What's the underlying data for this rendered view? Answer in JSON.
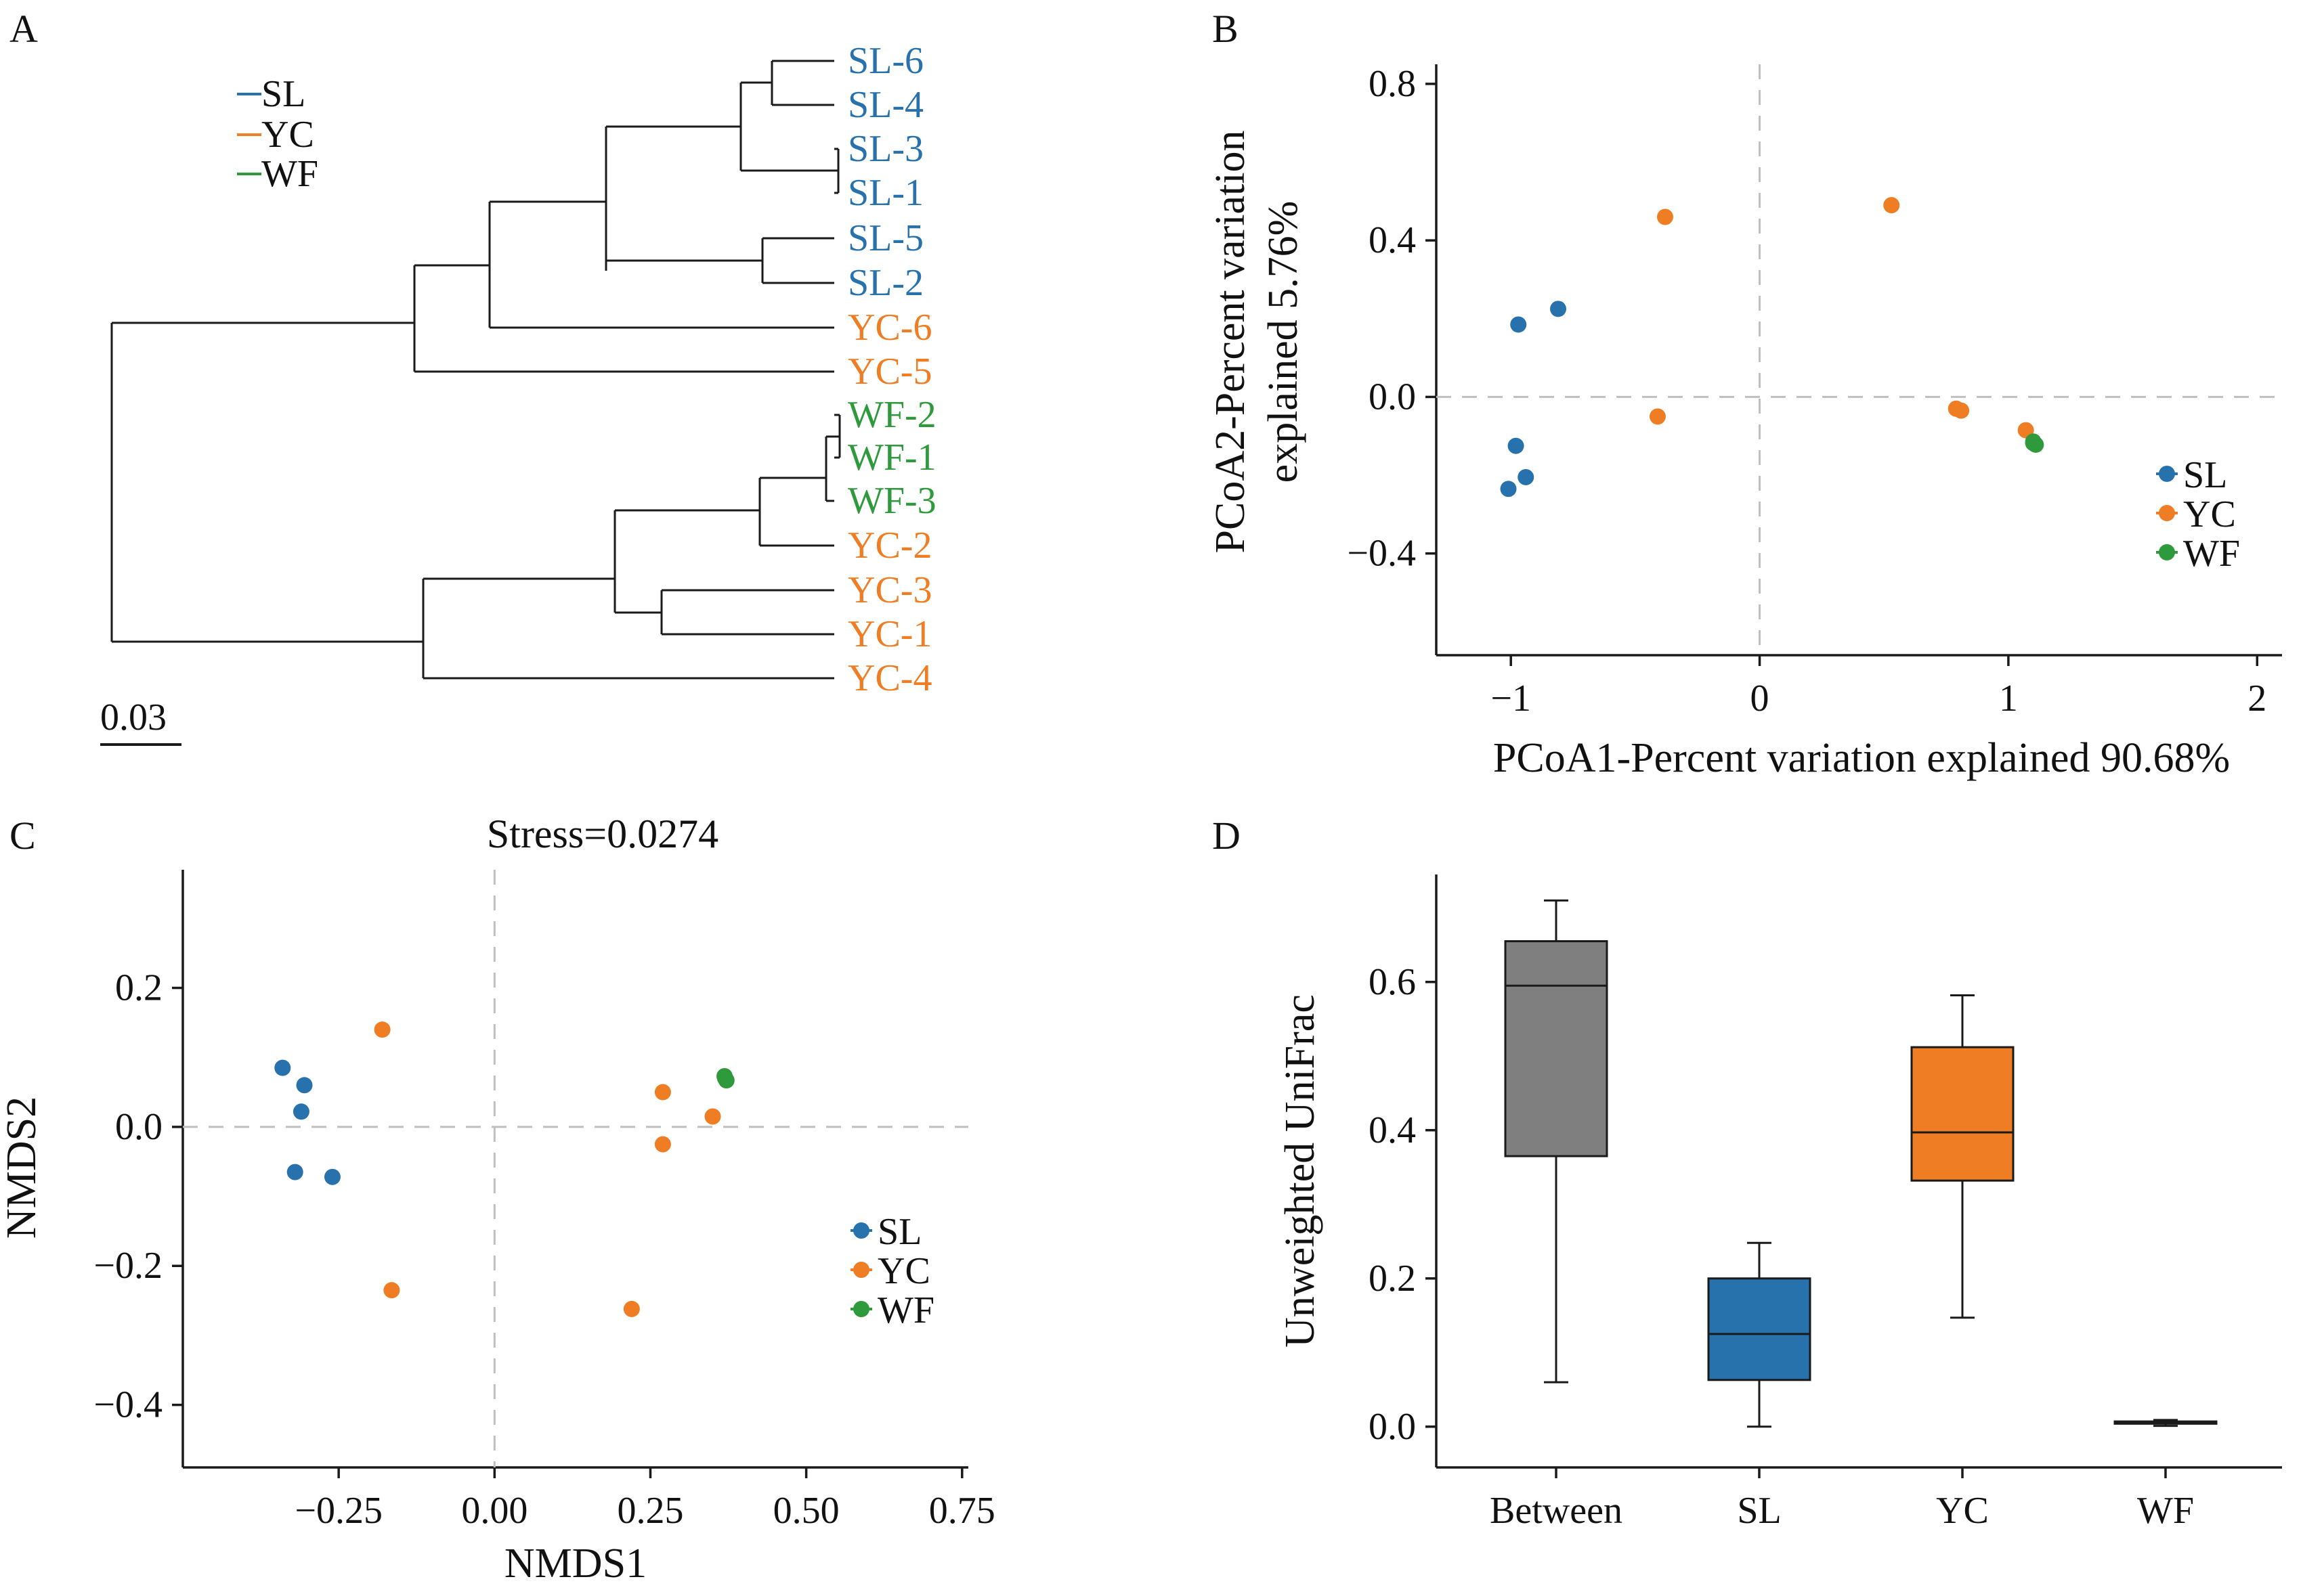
{
  "colors": {
    "SL": "#2771ad",
    "YC": "#ee7d23",
    "WF": "#2f9a3b",
    "Between": "#7f7f7f",
    "axis": "#1a1a1a",
    "refline": "#bfbfbf"
  },
  "panels": {
    "A": {
      "letter": "A"
    },
    "B": {
      "letter": "B"
    },
    "C": {
      "letter": "C"
    },
    "D": {
      "letter": "D"
    }
  },
  "chart_data": [
    {
      "panel": "A",
      "type": "dendrogram",
      "legend": [
        "SL",
        "YC",
        "WF"
      ],
      "scale_bar_label": "0.03",
      "leaves": [
        {
          "label": "SL-6",
          "group": "SL"
        },
        {
          "label": "SL-4",
          "group": "SL"
        },
        {
          "label": "SL-3",
          "group": "SL"
        },
        {
          "label": "SL-1",
          "group": "SL"
        },
        {
          "label": "SL-5",
          "group": "SL"
        },
        {
          "label": "SL-2",
          "group": "SL"
        },
        {
          "label": "YC-6",
          "group": "YC"
        },
        {
          "label": "YC-5",
          "group": "YC"
        },
        {
          "label": "WF-2",
          "group": "WF"
        },
        {
          "label": "WF-1",
          "group": "WF"
        },
        {
          "label": "WF-3",
          "group": "WF"
        },
        {
          "label": "YC-2",
          "group": "YC"
        },
        {
          "label": "YC-3",
          "group": "YC"
        },
        {
          "label": "YC-1",
          "group": "YC"
        },
        {
          "label": "YC-4",
          "group": "YC"
        }
      ]
    },
    {
      "panel": "B",
      "type": "scatter",
      "xlabel": "PCoA1-Percent variation explained 90.68%",
      "ylabel": [
        "PCoA2-Percent variation",
        "explained 5.76%"
      ],
      "xlim": [
        -1.3,
        2.1
      ],
      "ylim": [
        -0.66,
        0.85
      ],
      "xticks": [
        -1,
        0,
        1,
        2
      ],
      "xtick_labels": [
        "−1",
        "0",
        "1",
        "2"
      ],
      "yticks": [
        -0.4,
        0.0,
        0.4,
        0.8
      ],
      "ytick_labels": [
        "−0.4",
        "0.0",
        "0.4",
        "0.8"
      ],
      "legend": [
        "SL",
        "YC",
        "WF"
      ],
      "series": [
        {
          "name": "SL",
          "points": [
            [
              -0.97,
              0.185
            ],
            [
              -0.81,
              0.225
            ],
            [
              -0.98,
              -0.125
            ],
            [
              -0.94,
              -0.205
            ],
            [
              -1.01,
              -0.235
            ]
          ]
        },
        {
          "name": "YC",
          "points": [
            [
              -0.38,
              0.46
            ],
            [
              0.53,
              0.49
            ],
            [
              -0.41,
              -0.05
            ],
            [
              0.79,
              -0.03
            ],
            [
              0.81,
              -0.035
            ],
            [
              1.07,
              -0.085
            ]
          ]
        },
        {
          "name": "WF",
          "points": [
            [
              1.1,
              -0.118
            ],
            [
              1.11,
              -0.122
            ],
            [
              1.1,
              -0.114
            ]
          ]
        }
      ]
    },
    {
      "panel": "C",
      "type": "scatter",
      "title": "Stress=0.0274",
      "xlabel": "NMDS1",
      "ylabel": "NMDS2",
      "xlim": [
        -0.5,
        0.76
      ],
      "ylim": [
        -0.49,
        0.37
      ],
      "xticks": [
        -0.25,
        0.0,
        0.25,
        0.5,
        0.75
      ],
      "xtick_labels": [
        "−0.25",
        "0.00",
        "0.25",
        "0.50",
        "0.75"
      ],
      "yticks": [
        -0.4,
        -0.2,
        0.0,
        0.2
      ],
      "ytick_labels": [
        "−0.4",
        "−0.2",
        "0.0",
        "0.2"
      ],
      "legend": [
        "SL",
        "YC",
        "WF"
      ],
      "series": [
        {
          "name": "SL",
          "points": [
            [
              -0.34,
              0.085
            ],
            [
              -0.305,
              0.06
            ],
            [
              -0.31,
              0.022
            ],
            [
              -0.32,
              -0.065
            ],
            [
              -0.26,
              -0.072
            ]
          ]
        },
        {
          "name": "YC",
          "points": [
            [
              -0.18,
              0.14
            ],
            [
              0.27,
              0.05
            ],
            [
              0.27,
              -0.025
            ],
            [
              0.35,
              0.015
            ],
            [
              -0.165,
              -0.235
            ],
            [
              0.22,
              -0.262
            ]
          ]
        },
        {
          "name": "WF",
          "points": [
            [
              0.37,
              0.07
            ],
            [
              0.372,
              0.067
            ],
            [
              0.369,
              0.073
            ]
          ]
        }
      ]
    },
    {
      "panel": "D",
      "type": "boxplot",
      "ylabel": "Unweighted UniFrac",
      "ylim": [
        -0.055,
        0.745
      ],
      "yticks": [
        0.0,
        0.2,
        0.4,
        0.6
      ],
      "ytick_labels": [
        "0.0",
        "0.2",
        "0.4",
        "0.6"
      ],
      "categories": [
        "Between",
        "SL",
        "YC",
        "WF"
      ],
      "boxes": [
        {
          "name": "Between",
          "min": 0.06,
          "q1": 0.365,
          "median": 0.595,
          "q3": 0.655,
          "max": 0.71
        },
        {
          "name": "SL",
          "min": 0.0,
          "q1": 0.063,
          "median": 0.125,
          "q3": 0.2,
          "max": 0.248
        },
        {
          "name": "YC",
          "min": 0.147,
          "q1": 0.332,
          "median": 0.397,
          "q3": 0.512,
          "max": 0.582
        },
        {
          "name": "WF",
          "min": 0.001,
          "q1": 0.004,
          "median": 0.006,
          "q3": 0.007,
          "max": 0.009
        }
      ]
    }
  ]
}
